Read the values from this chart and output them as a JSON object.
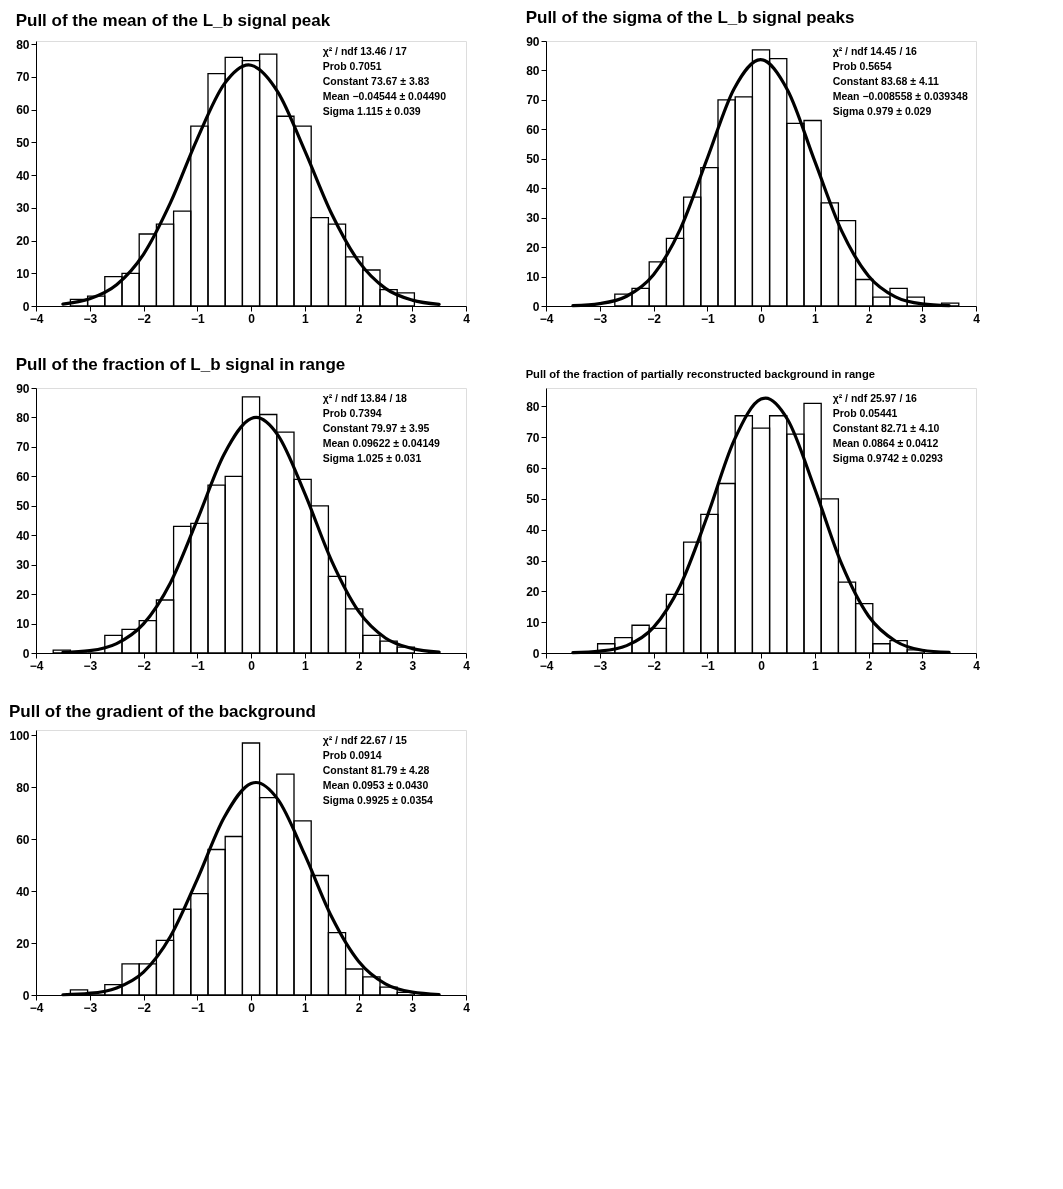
{
  "chart_data": [
    {
      "type": "histogram",
      "title": "Pull of the mean of the L_b signal peak",
      "color": "#000000",
      "bins": [
        -3.36,
        -3.04,
        -2.72,
        -2.4,
        -2.08,
        -1.76,
        -1.44,
        -1.12,
        -0.8,
        -0.48,
        -0.16,
        0.16,
        0.48,
        0.8,
        1.12,
        1.44,
        1.76,
        2.08,
        2.4,
        2.72,
        3.04
      ],
      "values": [
        2,
        3,
        9,
        10,
        22,
        25,
        29,
        55,
        71,
        76,
        75,
        77,
        58,
        55,
        27,
        25,
        15,
        11,
        5,
        4
      ],
      "series": [
        {
          "type": "line",
          "color": "#000000",
          "x": [
            -3.5,
            -3,
            -2.5,
            -2,
            -1.5,
            -1,
            -0.5,
            -0.045,
            0,
            0.5,
            1,
            1.5,
            2,
            2.5,
            3,
            3.5
          ],
          "values": [
            0.6,
            2.2,
            6.5,
            15.8,
            31.5,
            51.1,
            67.8,
            73.7,
            73.6,
            65.4,
            47.5,
            28.2,
            13.7,
            5.4,
            1.8,
            0.5
          ]
        }
      ],
      "xlim": [
        -4,
        4
      ],
      "xticks": [
        -4,
        -3,
        -2,
        -1,
        0,
        1,
        2,
        3,
        4
      ],
      "ylim": [
        0,
        81
      ],
      "yticks": [
        0,
        10,
        20,
        30,
        40,
        50,
        60,
        70,
        80
      ],
      "annotations": [
        "χ² / ndf   13.46 / 17",
        "Prob   0.7051",
        "Constant   73.67 ± 3.83",
        "Mean   −0.04544 ± 0.04490",
        "Sigma   1.115 ± 0.039"
      ]
    },
    {
      "type": "histogram",
      "title": "Pull of the sigma of the L_b signal peaks",
      "color": "#000000",
      "bins": [
        -2.72,
        -2.4,
        -2.08,
        -1.76,
        -1.44,
        -1.12,
        -0.8,
        -0.48,
        -0.16,
        0.16,
        0.48,
        0.8,
        1.12,
        1.44,
        1.76,
        2.08,
        2.4,
        2.72,
        3.04,
        3.36,
        3.68
      ],
      "values": [
        4,
        6,
        15,
        23,
        37,
        47,
        70,
        71,
        87,
        84,
        62,
        63,
        35,
        29,
        9,
        3,
        6,
        3,
        0,
        1
      ],
      "series": [
        {
          "type": "line",
          "color": "#000000",
          "x": [
            -3.5,
            -3,
            -2.5,
            -2,
            -1.5,
            -1,
            -0.5,
            -0.009,
            0.5,
            1,
            1.5,
            2,
            2.5,
            3,
            3.5
          ],
          "values": [
            0.1,
            0.8,
            3.3,
            10.6,
            26.2,
            50.1,
            73.8,
            83.7,
            73.1,
            49.2,
            25.5,
            10.2,
            3.1,
            0.7,
            0.1
          ]
        }
      ],
      "xlim": [
        -4,
        4
      ],
      "xticks": [
        -4,
        -3,
        -2,
        -1,
        0,
        1,
        2,
        3,
        4
      ],
      "ylim": [
        0,
        90
      ],
      "yticks": [
        0,
        10,
        20,
        30,
        40,
        50,
        60,
        70,
        80,
        90
      ],
      "annotations": [
        "χ² / ndf   14.45 / 16",
        "Prob   0.5654",
        "Constant   83.68 ± 4.11",
        "Mean   −0.008558 ± 0.039348",
        "Sigma   0.979 ± 0.029"
      ]
    },
    {
      "type": "histogram",
      "title": "Pull of the fraction of L_b signal in range",
      "color": "#000000",
      "bins": [
        -3.68,
        -3.36,
        -3.04,
        -2.72,
        -2.4,
        -2.08,
        -1.76,
        -1.44,
        -1.12,
        -0.8,
        -0.48,
        -0.16,
        0.16,
        0.48,
        0.8,
        1.12,
        1.44,
        1.76,
        2.08,
        2.4,
        2.72,
        3.04
      ],
      "values": [
        1,
        0,
        0,
        6,
        8,
        11,
        18,
        43,
        44,
        57,
        60,
        87,
        81,
        75,
        59,
        50,
        26,
        15,
        6,
        4,
        2
      ],
      "series": [
        {
          "type": "line",
          "color": "#000000",
          "x": [
            -3.5,
            -3,
            -2.5,
            -2,
            -1.5,
            -1,
            -0.5,
            0,
            0.096,
            0.5,
            1,
            1.5,
            2,
            2.5,
            3,
            3.5
          ],
          "values": [
            0.2,
            0.8,
            3.2,
            9.9,
            23.8,
            45.2,
            67.5,
            79.6,
            80.0,
            74.0,
            54.2,
            31.3,
            14.2,
            5.1,
            1.5,
            0.3
          ]
        }
      ],
      "xlim": [
        -4,
        4
      ],
      "xticks": [
        -4,
        -3,
        -2,
        -1,
        0,
        1,
        2,
        3,
        4
      ],
      "ylim": [
        0,
        90
      ],
      "yticks": [
        0,
        10,
        20,
        30,
        40,
        50,
        60,
        70,
        80,
        90
      ],
      "annotations": [
        "χ² / ndf   13.84 / 18",
        "Prob   0.7394",
        "Constant   79.97 ± 3.95",
        "Mean   0.09622 ± 0.04149",
        "Sigma   1.025 ± 0.031"
      ]
    },
    {
      "type": "histogram",
      "title": "Pull of the fraction of partially reconstructed background in range",
      "color": "#000000",
      "bins": [
        -3.04,
        -2.72,
        -2.4,
        -2.08,
        -1.76,
        -1.44,
        -1.12,
        -0.8,
        -0.48,
        -0.16,
        0.16,
        0.48,
        0.8,
        1.12,
        1.44,
        1.76,
        2.08,
        2.4,
        2.72,
        3.04
      ],
      "values": [
        3,
        5,
        9,
        8,
        19,
        36,
        45,
        55,
        77,
        73,
        77,
        71,
        81,
        50,
        23,
        16,
        3,
        4,
        1
      ],
      "series": [
        {
          "type": "line",
          "color": "#000000",
          "x": [
            -3.5,
            -3,
            -2.5,
            -2,
            -1.5,
            -1,
            -0.5,
            0,
            0.086,
            0.5,
            1,
            1.5,
            2,
            2.5,
            3,
            3.5
          ],
          "values": [
            0.1,
            0.6,
            2.4,
            8.3,
            22.0,
            44.4,
            69.0,
            82.4,
            82.7,
            75.6,
            53.3,
            28.9,
            12.0,
            3.9,
            0.9,
            0.2
          ]
        }
      ],
      "xlim": [
        -4,
        4
      ],
      "xticks": [
        -4,
        -3,
        -2,
        -1,
        0,
        1,
        2,
        3,
        4
      ],
      "ylim": [
        0,
        86
      ],
      "yticks": [
        0,
        10,
        20,
        30,
        40,
        50,
        60,
        70,
        80
      ],
      "annotations": [
        "χ² / ndf   25.97 / 16",
        "Prob   0.05441",
        "Constant   82.71 ± 4.10",
        "Mean   0.0864 ± 0.0412",
        "Sigma   0.9742 ± 0.0293"
      ]
    },
    {
      "type": "histogram",
      "title": "Pull of the gradient of the background",
      "color": "#000000",
      "bins": [
        -3.36,
        -3.04,
        -2.72,
        -2.4,
        -2.08,
        -1.76,
        -1.44,
        -1.12,
        -0.8,
        -0.48,
        -0.16,
        0.16,
        0.48,
        0.8,
        1.12,
        1.44,
        1.76,
        2.08,
        2.4,
        2.72,
        3.04
      ],
      "values": [
        2,
        1,
        4,
        12,
        12,
        21,
        33,
        39,
        56,
        61,
        97,
        76,
        85,
        67,
        46,
        24,
        10,
        7,
        3,
        1
      ],
      "series": [
        {
          "type": "line",
          "color": "#000000",
          "x": [
            -3.5,
            -3,
            -2.5,
            -2,
            -1.5,
            -1,
            -0.5,
            0,
            0.095,
            0.5,
            1,
            1.5,
            2,
            2.5,
            3,
            3.5
          ],
          "values": [
            0.1,
            0.6,
            2.7,
            8.8,
            22.5,
            44.5,
            68.3,
            81.4,
            81.8,
            75.3,
            54.0,
            30.1,
            13.0,
            4.3,
            1.1,
            0.2
          ]
        }
      ],
      "xlim": [
        -4,
        4
      ],
      "xticks": [
        -4,
        -3,
        -2,
        -1,
        0,
        1,
        2,
        3,
        4
      ],
      "ylim": [
        0,
        102
      ],
      "yticks": [
        0,
        20,
        40,
        60,
        80,
        100
      ],
      "annotations": [
        "χ² / ndf   22.67 / 15",
        "Prob   0.0914",
        "Constant   81.79 ± 4.28",
        "Mean   0.0953 ± 0.0430",
        "Sigma   0.9925 ± 0.0354"
      ]
    }
  ]
}
